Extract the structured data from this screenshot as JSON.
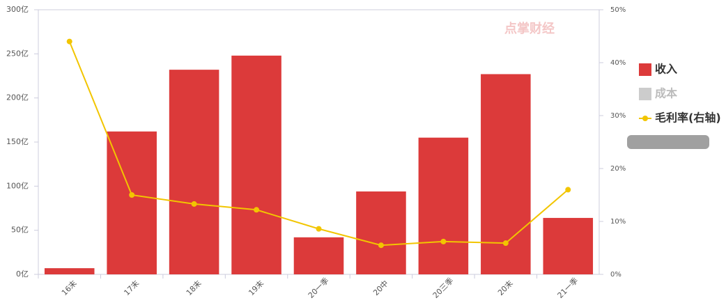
{
  "chart_data": {
    "type": "bar",
    "watermark": "点掌财经",
    "categories": [
      "16末",
      "17末",
      "18末",
      "19末",
      "20一季",
      "20中",
      "20三季",
      "20末",
      "21一季"
    ],
    "series": [
      {
        "name": "收入",
        "color": "#dc3a3a",
        "type": "bar",
        "visible": true,
        "values": [
          7,
          162,
          232,
          248,
          42,
          94,
          155,
          227,
          64
        ]
      },
      {
        "name": "成本",
        "color": "#cccccc",
        "type": "bar",
        "visible": false,
        "values": [
          null,
          null,
          null,
          null,
          null,
          null,
          null,
          null,
          null
        ]
      },
      {
        "name": "毛利率(右轴)",
        "color": "#f2c500",
        "type": "line",
        "axis": "y2",
        "visible": true,
        "values": [
          44,
          15,
          13.3,
          12.2,
          8.6,
          5.5,
          6.2,
          5.9,
          16
        ]
      }
    ],
    "ylim": [
      0,
      300
    ],
    "yticks": [
      {
        "value": 0,
        "label": "0亿"
      },
      {
        "value": 50,
        "label": "50亿"
      },
      {
        "value": 100,
        "label": "100亿"
      },
      {
        "value": 150,
        "label": "150亿"
      },
      {
        "value": 200,
        "label": "200亿"
      },
      {
        "value": 250,
        "label": "250亿"
      },
      {
        "value": 300,
        "label": "300亿"
      }
    ],
    "y2lim": [
      0,
      50
    ],
    "y2ticks": [
      {
        "value": 0,
        "label": "0%"
      },
      {
        "value": 10,
        "label": "10%"
      },
      {
        "value": 20,
        "label": "20%"
      },
      {
        "value": 30,
        "label": "30%"
      },
      {
        "value": 40,
        "label": "40%"
      },
      {
        "value": 50,
        "label": "50%"
      }
    ],
    "legend": "right"
  }
}
